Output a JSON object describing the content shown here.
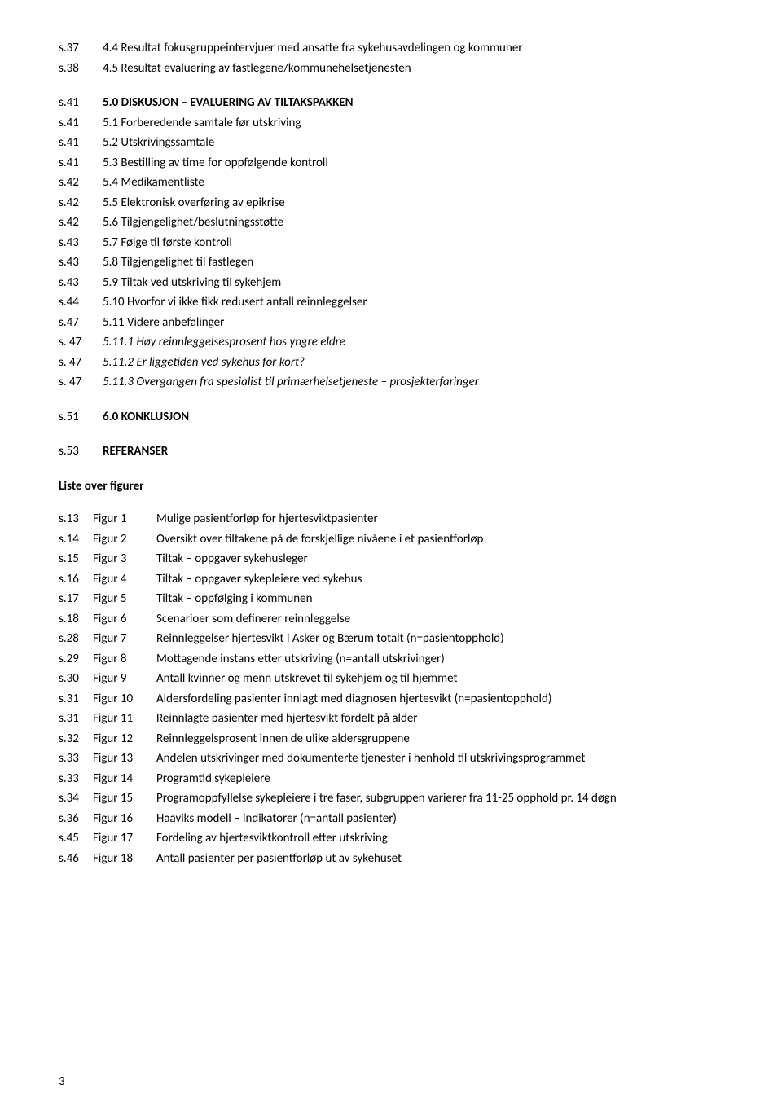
{
  "toc": [
    {
      "page": "s.37",
      "label": "4.4 Resultat fokusgruppeintervjuer med ansatte fra sykehusavdelingen og kommuner",
      "bold": false,
      "italic": false
    },
    {
      "page": "s.38",
      "label": "4.5 Resultat evaluering av fastlegene/kommunehelsetjenesten",
      "bold": false,
      "italic": false
    }
  ],
  "toc2": [
    {
      "page": "s.41",
      "label": "5.0 DISKUSJON – EVALUERING AV TILTAKSPAKKEN",
      "bold": true,
      "italic": false
    },
    {
      "page": "s.41",
      "label": "5.1 Forberedende samtale før utskriving",
      "bold": false,
      "italic": false
    },
    {
      "page": "s.41",
      "label": "5.2 Utskrivingssamtale",
      "bold": false,
      "italic": false
    },
    {
      "page": "s.41",
      "label": "5.3 Bestilling av time for oppfølgende kontroll",
      "bold": false,
      "italic": false
    },
    {
      "page": "s.42",
      "label": "5.4 Medikamentliste",
      "bold": false,
      "italic": false
    },
    {
      "page": "s.42",
      "label": "5.5 Elektronisk overføring av epikrise",
      "bold": false,
      "italic": false
    },
    {
      "page": "s.42",
      "label": "5.6 Tilgjengelighet/beslutningsstøtte",
      "bold": false,
      "italic": false
    },
    {
      "page": "s.43",
      "label": "5.7 Følge til første kontroll",
      "bold": false,
      "italic": false
    },
    {
      "page": "s.43",
      "label": "5.8 Tilgjengelighet til fastlegen",
      "bold": false,
      "italic": false
    },
    {
      "page": "s.43",
      "label": "5.9 Tiltak ved utskriving til sykehjem",
      "bold": false,
      "italic": false
    },
    {
      "page": "s.44",
      "label": "5.10 Hvorfor vi ikke fikk redusert antall reinnleggelser",
      "bold": false,
      "italic": false
    },
    {
      "page": "s.47",
      "label": "5.11 Videre anbefalinger",
      "bold": false,
      "italic": false
    },
    {
      "page": "s. 47",
      "label": "5.11.1 Høy reinnleggelsesprosent hos yngre eldre",
      "bold": false,
      "italic": true
    },
    {
      "page": "s. 47",
      "label": "5.11.2 Er liggetiden ved sykehus for kort?",
      "bold": false,
      "italic": true
    },
    {
      "page": "s. 47",
      "label": "5.11.3 Overgangen fra spesialist til primærhelsetjeneste – prosjekterfaringer",
      "bold": false,
      "italic": true
    }
  ],
  "toc3": [
    {
      "page": "s.51",
      "label": "6.0 KONKLUSJON",
      "bold": true,
      "italic": false
    }
  ],
  "toc4": [
    {
      "page": "s.53",
      "label": "REFERANSER",
      "bold": true,
      "italic": false
    }
  ],
  "figures_heading": "Liste over figurer",
  "figures": [
    {
      "page": "s.13",
      "fig": "Figur 1",
      "desc": "Mulige pasientforløp for hjertesviktpasienter"
    },
    {
      "page": "s.14",
      "fig": "Figur 2",
      "desc": "Oversikt over tiltakene på de forskjellige nivåene i et pasientforløp"
    },
    {
      "page": "s.15",
      "fig": "Figur 3",
      "desc": "Tiltak – oppgaver sykehusleger"
    },
    {
      "page": "s.16",
      "fig": "Figur 4",
      "desc": "Tiltak – oppgaver sykepleiere ved sykehus"
    },
    {
      "page": "s.17",
      "fig": "Figur 5",
      "desc": "Tiltak – oppfølging i kommunen"
    },
    {
      "page": "s.18",
      "fig": "Figur 6",
      "desc": "Scenarioer som definerer reinnleggelse"
    },
    {
      "page": "s.28",
      "fig": "Figur 7",
      "desc": "Reinnleggelser hjertesvikt i Asker og Bærum totalt (n=pasientopphold)"
    },
    {
      "page": "s.29",
      "fig": "Figur 8",
      "desc": "Mottagende instans etter utskriving (n=antall utskrivinger)"
    },
    {
      "page": "s.30",
      "fig": "Figur 9",
      "desc": "Antall kvinner og menn utskrevet til sykehjem og til hjemmet"
    },
    {
      "page": "s.31",
      "fig": "Figur 10",
      "desc": "Aldersfordeling pasienter innlagt med diagnosen hjertesvikt (n=pasientopphold)"
    },
    {
      "page": "s.31",
      "fig": "Figur 11",
      "desc": "Reinnlagte pasienter med hjertesvikt fordelt på alder"
    },
    {
      "page": "s.32",
      "fig": "Figur 12",
      "desc": "Reinnleggelsprosent innen de ulike aldersgruppene"
    },
    {
      "page": "s.33",
      "fig": "Figur 13",
      "desc": "Andelen utskrivinger med dokumenterte tjenester i henhold til utskrivingsprogrammet"
    },
    {
      "page": "s.33",
      "fig": "Figur 14",
      "desc": "Programtid sykepleiere"
    },
    {
      "page": "s.34",
      "fig": "Figur 15",
      "desc": "Programoppfyllelse sykepleiere i tre faser, subgruppen varierer fra 11-25 opphold pr. 14 døgn"
    },
    {
      "page": "s.36",
      "fig": "Figur 16",
      "desc": "Haaviks modell – indikatorer (n=antall pasienter)"
    },
    {
      "page": "s.45",
      "fig": "Figur 17",
      "desc": "Fordeling av hjertesviktkontroll etter utskriving"
    },
    {
      "page": "s.46",
      "fig": "Figur 18",
      "desc": "Antall pasienter per pasientforløp ut av sykehuset"
    }
  ],
  "page_number": "3"
}
